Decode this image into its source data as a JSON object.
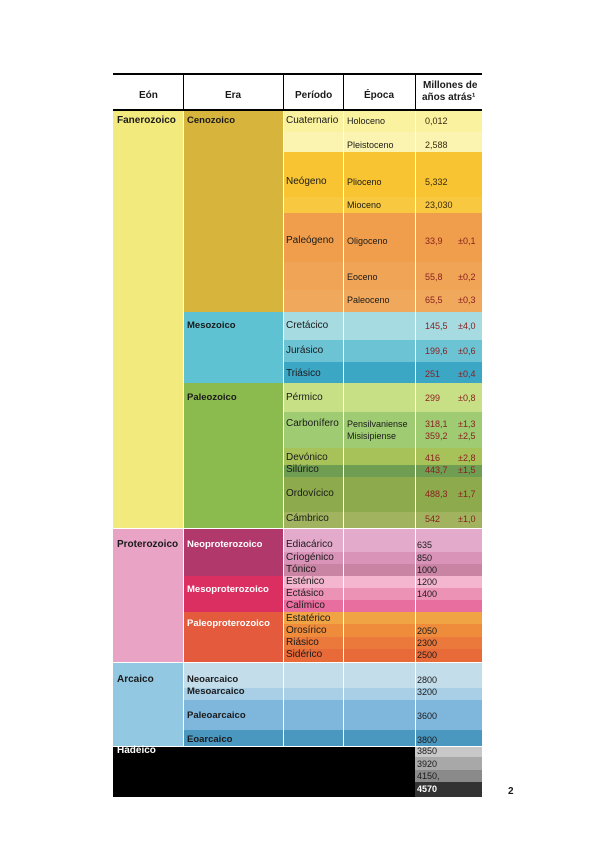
{
  "header": {
    "eon": "Eón",
    "era": "Era",
    "period": "Período",
    "epoch": "Época",
    "mya": [
      "Millones de",
      "años atrás¹"
    ]
  },
  "eons": [
    "Fanerozoico",
    "Proterozoico",
    "Arcaico",
    "Hadeico"
  ],
  "eras": [
    "Cenozoico",
    "Mesozoico",
    "Paleozoico",
    "Neoproterozoico",
    "Mesoproterozoico",
    "Paleoproterozoico",
    "Neoarcaico",
    "Mesoarcaico",
    "Paleoarcaico",
    "Eoarcaico"
  ],
  "periods": [
    "Cuaternario",
    "Neógeno",
    "Paleógeno",
    "Cretácico",
    "Jurásico",
    "Triásico",
    "Pérmico",
    "Carbonífero",
    "Devónico",
    "Silúrico",
    "Ordovícico",
    "Cámbrico",
    "Ediacárico",
    "Criogénico",
    "Tónico",
    "Esténico",
    "Ectásico",
    "Calímico",
    "Estatérico",
    "Orosírico",
    "Riásico",
    "Sidérico"
  ],
  "epochs": [
    "Holoceno",
    "Pleistoceno",
    "Plioceno",
    "Mioceno",
    "Oligoceno",
    "Eoceno",
    "Paleoceno",
    "Pensilvaniense",
    "Misisipiense"
  ],
  "ages": [
    {
      "value": "0,012"
    },
    {
      "value": "2,588"
    },
    {
      "value": "5,332"
    },
    {
      "value": "23,030"
    },
    {
      "value": "33,9",
      "error": "±0,1"
    },
    {
      "value": "55,8",
      "error": "±0,2"
    },
    {
      "value": "65,5",
      "error": "±0,3"
    },
    {
      "value": "145,5",
      "error": "±4,0"
    },
    {
      "value": "199,6",
      "error": "±0,6"
    },
    {
      "value": 251,
      "error": "±0,4"
    },
    {
      "value": 299,
      "error": "±0,8"
    },
    {
      "value": "318,1",
      "error": "±1,3"
    },
    {
      "value": "359,2",
      "error": "±2,5"
    },
    {
      "value": 416,
      "error": "±2,8"
    },
    {
      "value": "443,7",
      "error": "±1,5"
    },
    {
      "value": "488,3",
      "error": "±1,7"
    },
    {
      "value": 542,
      "error": "±1,0"
    },
    {
      "value": 635
    },
    {
      "value": 850
    },
    {
      "value": 1000
    },
    {
      "value": 1200
    },
    {
      "value": 1400
    },
    {
      "value": 2050
    },
    {
      "value": 2300
    },
    {
      "value": 2500
    },
    {
      "value": 2800
    },
    {
      "value": 3200
    },
    {
      "value": 3600
    },
    {
      "value": 3800
    },
    {
      "value": 3850
    },
    {
      "value": 3920
    },
    {
      "value": "4150,"
    },
    {
      "value": 4570
    }
  ],
  "page_number": "2"
}
